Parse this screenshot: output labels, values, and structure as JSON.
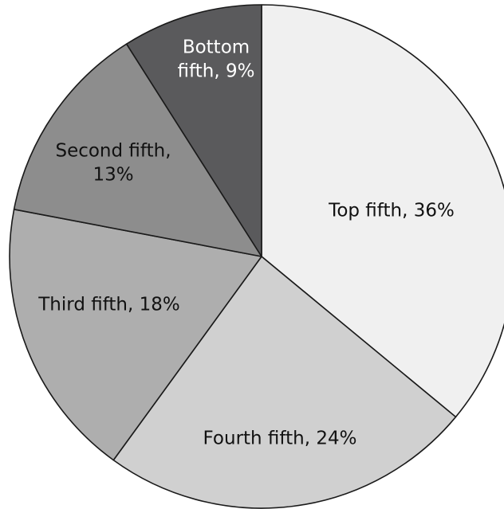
{
  "chart_data": {
    "type": "pie",
    "start": "12 o'clock",
    "direction": "clockwise",
    "slices": [
      {
        "label": "Top fifth",
        "value": 36,
        "display": "Top fifth, 36%",
        "lines": [
          "Top fifth, 36%"
        ],
        "color": "#f0f0f0",
        "text_color": "#111111"
      },
      {
        "label": "Fourth fifth",
        "value": 24,
        "display": "Fourth fifth, 24%",
        "lines": [
          "Fourth fifth, 24%"
        ],
        "color": "#d0d0d0",
        "text_color": "#111111"
      },
      {
        "label": "Third fifth",
        "value": 18,
        "display": "Third fifth, 18%",
        "lines": [
          "Third fifth, 18%"
        ],
        "color": "#aeaeae",
        "text_color": "#111111"
      },
      {
        "label": "Second fifth",
        "value": 13,
        "display": "Second fifth, 13%",
        "lines": [
          "Second fifth,",
          "13%"
        ],
        "color": "#8d8d8d",
        "text_color": "#111111"
      },
      {
        "label": "Bottom fifth",
        "value": 9,
        "display": "Bottom fifth, 9%",
        "lines": [
          "Bottom",
          "fifth, 9%"
        ],
        "color": "#5a5a5c",
        "text_color": "#ffffff"
      }
    ]
  }
}
